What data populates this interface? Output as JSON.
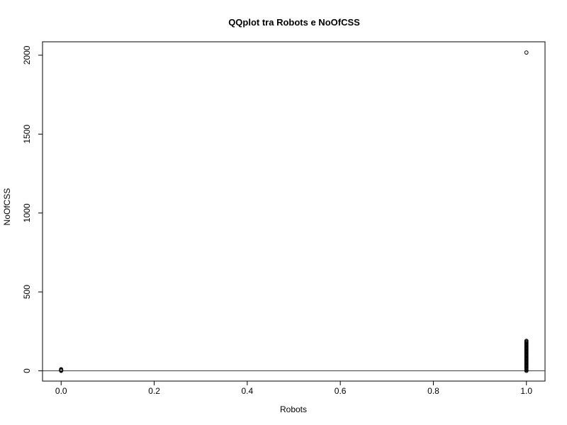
{
  "chart_data": {
    "type": "scatter",
    "title": "QQplot tra Robots e NoOfCSS",
    "xlabel": "Robots",
    "ylabel": "NoOfCSS",
    "xlim": [
      -0.04,
      1.04
    ],
    "ylim": [
      -65,
      2085
    ],
    "xticks": [
      0.0,
      0.2,
      0.4,
      0.6,
      0.8,
      1.0
    ],
    "xtick_labels": [
      "0.0",
      "0.2",
      "0.4",
      "0.6",
      "0.8",
      "1.0"
    ],
    "yticks": [
      0,
      500,
      1000,
      1500,
      2000
    ],
    "ytick_labels": [
      "0",
      "500",
      "1000",
      "1500",
      "2000"
    ],
    "grid": false,
    "marker": "open-circle",
    "reference_line": {
      "type": "horizontal",
      "y": 0,
      "color": "#cc0000"
    },
    "series": [
      {
        "points": [
          [
            0,
            0
          ],
          [
            0,
            2
          ],
          [
            0,
            4
          ],
          [
            0,
            6
          ],
          [
            0,
            8
          ],
          [
            0,
            10
          ],
          [
            1,
            0
          ],
          [
            1,
            5
          ],
          [
            1,
            10
          ],
          [
            1,
            15
          ],
          [
            1,
            20
          ],
          [
            1,
            25
          ],
          [
            1,
            30
          ],
          [
            1,
            35
          ],
          [
            1,
            40
          ],
          [
            1,
            45
          ],
          [
            1,
            50
          ],
          [
            1,
            55
          ],
          [
            1,
            60
          ],
          [
            1,
            65
          ],
          [
            1,
            70
          ],
          [
            1,
            75
          ],
          [
            1,
            80
          ],
          [
            1,
            85
          ],
          [
            1,
            90
          ],
          [
            1,
            95
          ],
          [
            1,
            100
          ],
          [
            1,
            105
          ],
          [
            1,
            110
          ],
          [
            1,
            115
          ],
          [
            1,
            120
          ],
          [
            1,
            125
          ],
          [
            1,
            130
          ],
          [
            1,
            135
          ],
          [
            1,
            140
          ],
          [
            1,
            145
          ],
          [
            1,
            150
          ],
          [
            1,
            155
          ],
          [
            1,
            160
          ],
          [
            1,
            165
          ],
          [
            1,
            170
          ],
          [
            1,
            175
          ],
          [
            1,
            180
          ],
          [
            1,
            185
          ],
          [
            1,
            190
          ],
          [
            1,
            2017
          ]
        ]
      }
    ]
  }
}
